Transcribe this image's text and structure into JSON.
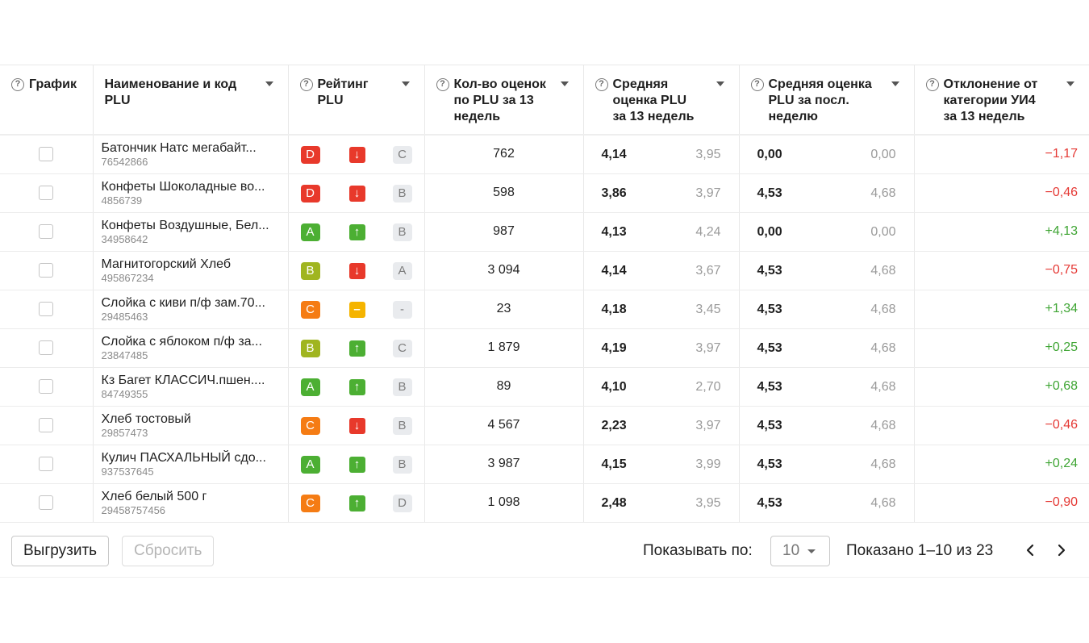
{
  "columns": [
    {
      "label": "График",
      "help": true,
      "sort": false
    },
    {
      "label": "Наименование и код\nPLU",
      "help": false,
      "sort": true
    },
    {
      "label": "Рейтинг\nPLU",
      "help": true,
      "sort": true
    },
    {
      "label": "Кол-во оценок\nпо PLU за 13\nнедель",
      "help": true,
      "sort": true
    },
    {
      "label": "Средняя\nоценка PLU\nза 13 недель",
      "help": true,
      "sort": true
    },
    {
      "label": "Средняя оценка\nPLU за посл.\nнеделю",
      "help": true,
      "sort": true
    },
    {
      "label": "Отклонение от\nкатегории УИ4\nза 13 недель",
      "help": true,
      "sort": true
    }
  ],
  "help_glyph": "?",
  "colors": {
    "A": "#4caf33",
    "B": "#a0b520",
    "C": "#f57c14",
    "D": "#e8392b",
    "up": "#4caf33",
    "down": "#e8392b",
    "flat": "#f5b400",
    "positive": "#3fa534",
    "negative": "#e53935"
  },
  "trend_glyphs": {
    "up": "↑",
    "down": "↓",
    "flat": "–"
  },
  "rows": [
    {
      "name": "Батончик Натс мегабайт...",
      "code": "76542866",
      "rating": "D",
      "trend": "down",
      "prev": "C",
      "count": "762",
      "avg13": "4,14",
      "avg13_cat": "3,95",
      "avgw": "0,00",
      "avgw_cat": "0,00",
      "dev": "−1,17",
      "dev_sign": "negative"
    },
    {
      "name": "Конфеты Шоколадные во...",
      "code": "4856739",
      "rating": "D",
      "trend": "down",
      "prev": "B",
      "count": "598",
      "avg13": "3,86",
      "avg13_cat": "3,97",
      "avgw": "4,53",
      "avgw_cat": "4,68",
      "dev": "−0,46",
      "dev_sign": "negative"
    },
    {
      "name": "Конфеты Воздушные, Бел...",
      "code": "34958642",
      "rating": "A",
      "trend": "up",
      "prev": "B",
      "count": "987",
      "avg13": "4,13",
      "avg13_cat": "4,24",
      "avgw": "0,00",
      "avgw_cat": "0,00",
      "dev": "+4,13",
      "dev_sign": "positive"
    },
    {
      "name": "Магнитогорский Хлеб",
      "code": "495867234",
      "rating": "B",
      "trend": "down",
      "prev": "A",
      "count": "3 094",
      "avg13": "4,14",
      "avg13_cat": "3,67",
      "avgw": "4,53",
      "avgw_cat": "4,68",
      "dev": "−0,75",
      "dev_sign": "negative"
    },
    {
      "name": "Слойка с киви п/ф зам.70...",
      "code": "29485463",
      "rating": "C",
      "trend": "flat",
      "prev": "-",
      "count": "23",
      "avg13": "4,18",
      "avg13_cat": "3,45",
      "avgw": "4,53",
      "avgw_cat": "4,68",
      "dev": "+1,34",
      "dev_sign": "positive"
    },
    {
      "name": "Слойка с яблоком п/ф за...",
      "code": "23847485",
      "rating": "B",
      "trend": "up",
      "prev": "C",
      "count": "1 879",
      "avg13": "4,19",
      "avg13_cat": "3,97",
      "avgw": "4,53",
      "avgw_cat": "4,68",
      "dev": "+0,25",
      "dev_sign": "positive"
    },
    {
      "name": "Кз Багет КЛАССИЧ.пшен....",
      "code": "84749355",
      "rating": "A",
      "trend": "up",
      "prev": "B",
      "count": "89",
      "avg13": "4,10",
      "avg13_cat": "2,70",
      "avgw": "4,53",
      "avgw_cat": "4,68",
      "dev": "+0,68",
      "dev_sign": "positive"
    },
    {
      "name": "Хлеб тостовый",
      "code": "29857473",
      "rating": "C",
      "trend": "down",
      "prev": "B",
      "count": "4 567",
      "avg13": "2,23",
      "avg13_cat": "3,97",
      "avgw": "4,53",
      "avgw_cat": "4,68",
      "dev": "−0,46",
      "dev_sign": "negative"
    },
    {
      "name": "Кулич ПАСХАЛЬНЫЙ сдо...",
      "code": "937537645",
      "rating": "A",
      "trend": "up",
      "prev": "B",
      "count": "3 987",
      "avg13": "4,15",
      "avg13_cat": "3,99",
      "avgw": "4,53",
      "avgw_cat": "4,68",
      "dev": "+0,24",
      "dev_sign": "positive"
    },
    {
      "name": "Хлеб белый 500 г",
      "code": "29458757456",
      "rating": "C",
      "trend": "up",
      "prev": "D",
      "count": "1 098",
      "avg13": "2,48",
      "avg13_cat": "3,95",
      "avgw": "4,53",
      "avgw_cat": "4,68",
      "dev": "−0,90",
      "dev_sign": "negative"
    }
  ],
  "footer": {
    "export_label": "Выгрузить",
    "reset_label": "Сбросить",
    "per_page_label": "Показывать по:",
    "per_page_value": "10",
    "shown_text": "Показано 1–10 из 23",
    "prev_icon": "chevron-left-icon",
    "next_icon": "chevron-right-icon"
  }
}
